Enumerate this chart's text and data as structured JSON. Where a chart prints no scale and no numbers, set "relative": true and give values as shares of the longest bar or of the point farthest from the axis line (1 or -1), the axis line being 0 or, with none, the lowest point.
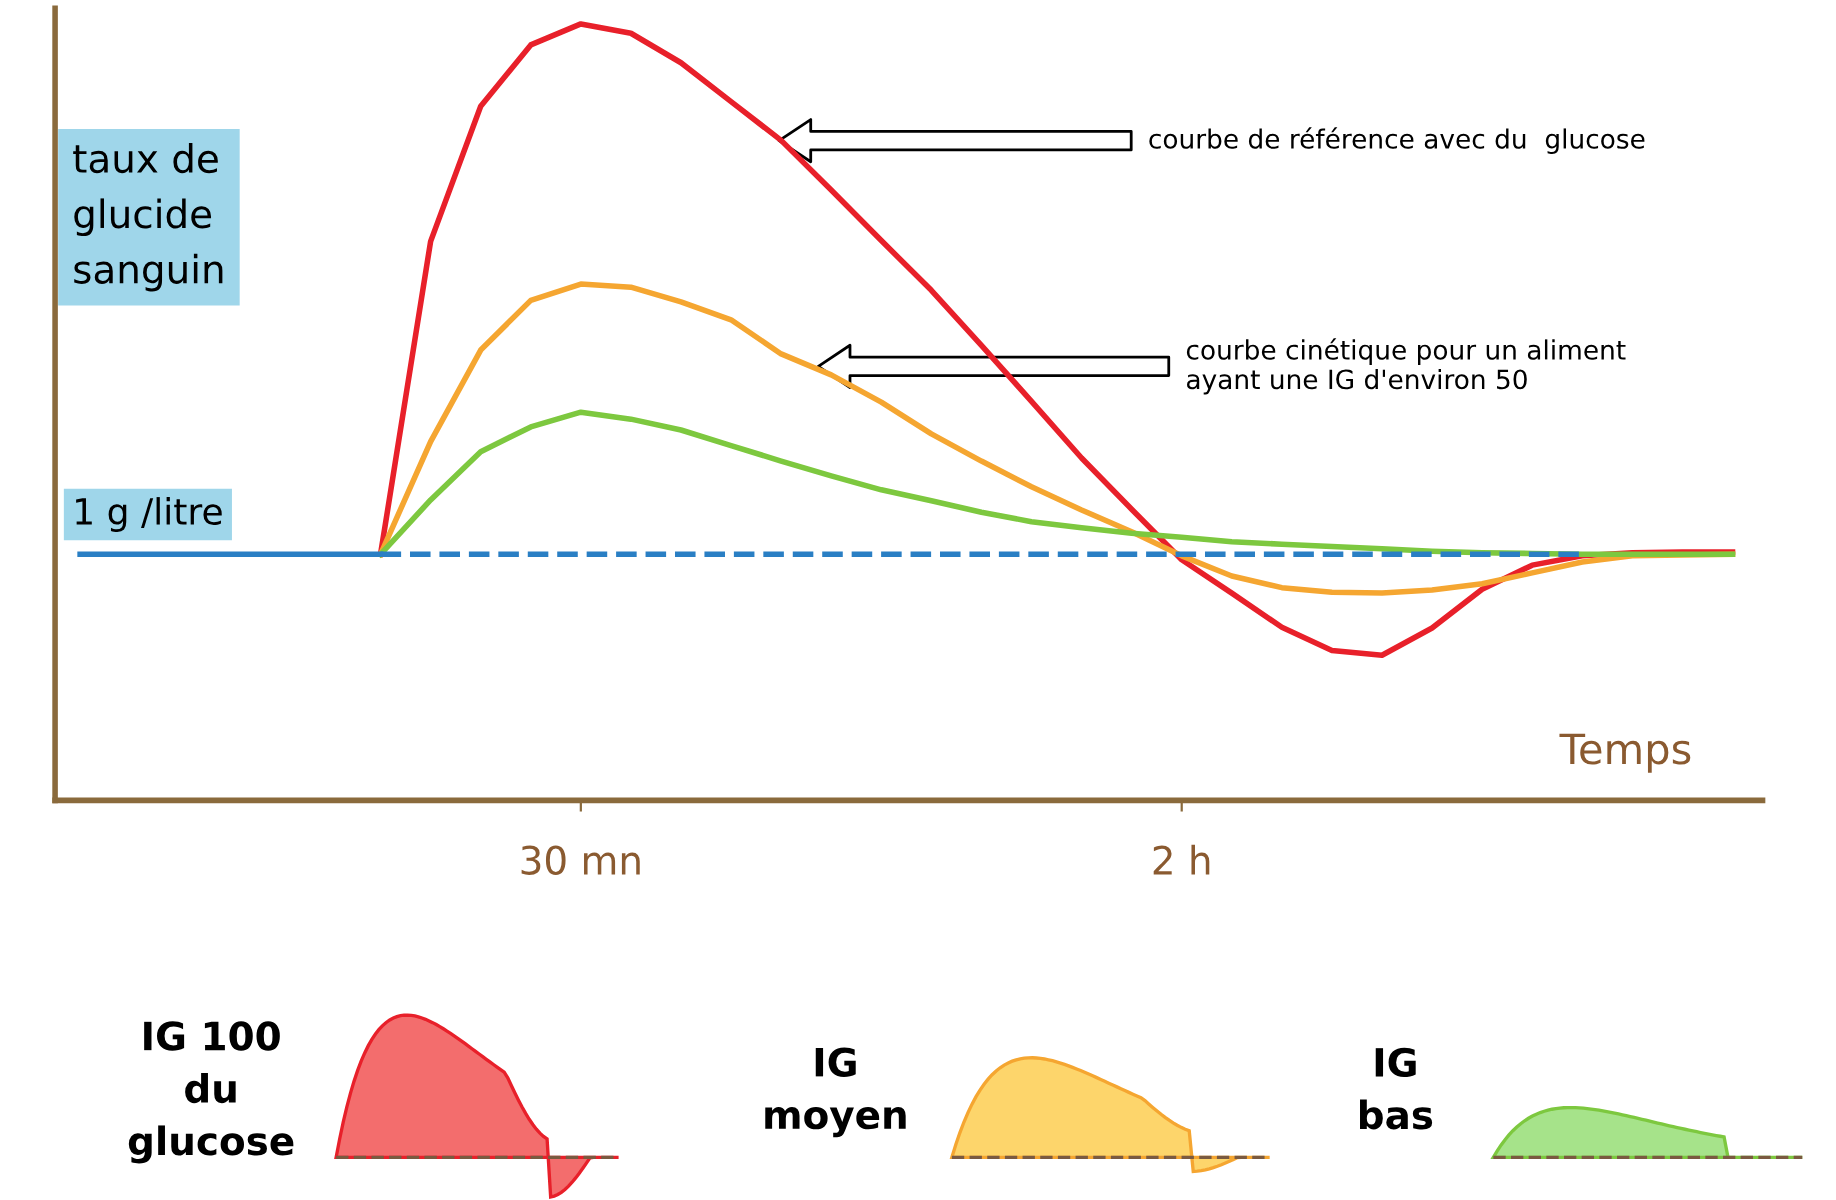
{
  "chart_data": {
    "type": "line",
    "relative": true,
    "ylabel": "taux de\nglucide\nsanguin",
    "xlabel": "Temps",
    "categories": [
      null,
      null,
      null,
      null,
      null,
      null,
      null,
      null,
      null,
      null,
      "30 mn",
      null,
      null,
      null,
      null,
      null,
      null,
      null,
      null,
      null,
      null,
      null,
      "2 h",
      null,
      null,
      null,
      null,
      null,
      null,
      null,
      null,
      null,
      null,
      null
    ],
    "series": [
      {
        "color": "#e8202a",
        "values": [
          null,
          null,
          null,
          null,
          null,
          null,
          0.317,
          0.72,
          0.894,
          0.973,
          1.0,
          0.988,
          0.95,
          0.9,
          0.85,
          0.786,
          0.721,
          0.657,
          0.586,
          0.514,
          0.441,
          0.375,
          0.31,
          0.267,
          0.223,
          0.193,
          0.187,
          0.222,
          0.272,
          0.303,
          0.315,
          0.319,
          0.32,
          0.32
        ]
      },
      {
        "color": "#f5a631",
        "values": [
          null,
          null,
          null,
          null,
          null,
          null,
          0.317,
          0.462,
          0.58,
          0.644,
          0.665,
          0.661,
          0.642,
          0.619,
          0.575,
          0.548,
          0.513,
          0.472,
          0.437,
          0.404,
          0.374,
          0.346,
          0.315,
          0.289,
          0.274,
          0.268,
          0.267,
          0.271,
          0.279,
          0.293,
          0.307,
          0.315,
          0.316,
          0.317
        ]
      },
      {
        "color": "#7dc83f",
        "values": [
          null,
          null,
          null,
          null,
          null,
          null,
          0.317,
          0.387,
          0.449,
          0.481,
          0.5,
          0.491,
          0.477,
          0.457,
          0.437,
          0.418,
          0.4,
          0.386,
          0.371,
          0.359,
          0.351,
          0.344,
          0.339,
          0.333,
          0.33,
          0.327,
          0.324,
          0.321,
          0.319,
          0.318,
          0.317,
          0.317,
          0.317,
          0.317
        ]
      },
      {
        "color": "#2a7fc4",
        "values": [
          0.317,
          0.317,
          0.317,
          0.317,
          0.317,
          0.317,
          0.317,
          null,
          null,
          null,
          null,
          null,
          null,
          null,
          null,
          null,
          null,
          null,
          null,
          null,
          null,
          null,
          null,
          null,
          null,
          null,
          null,
          null,
          null,
          null,
          null,
          null,
          null,
          null
        ]
      },
      {
        "color": "#2a7fc4",
        "line_style": "dashed",
        "values": [
          null,
          null,
          null,
          null,
          null,
          null,
          0.317,
          0.317,
          0.317,
          0.317,
          0.317,
          0.317,
          0.317,
          0.317,
          0.317,
          0.317,
          0.317,
          0.317,
          0.317,
          0.317,
          0.317,
          0.317,
          0.317,
          0.317,
          0.317,
          0.317,
          0.317,
          0.317,
          0.317,
          0.317,
          0.317,
          null,
          null,
          null
        ]
      }
    ],
    "annotations": [
      "courbe de référence avec du  glucose",
      "courbe cinétique pour un aliment\nayant une IG d'environ 50",
      {
        "text": "1 g /litre",
        "y": 0.317
      },
      "IG 100\ndu\nglucose",
      "IG\nmoyen",
      "IG\nbas"
    ],
    "legend": false,
    "grid": false
  }
}
